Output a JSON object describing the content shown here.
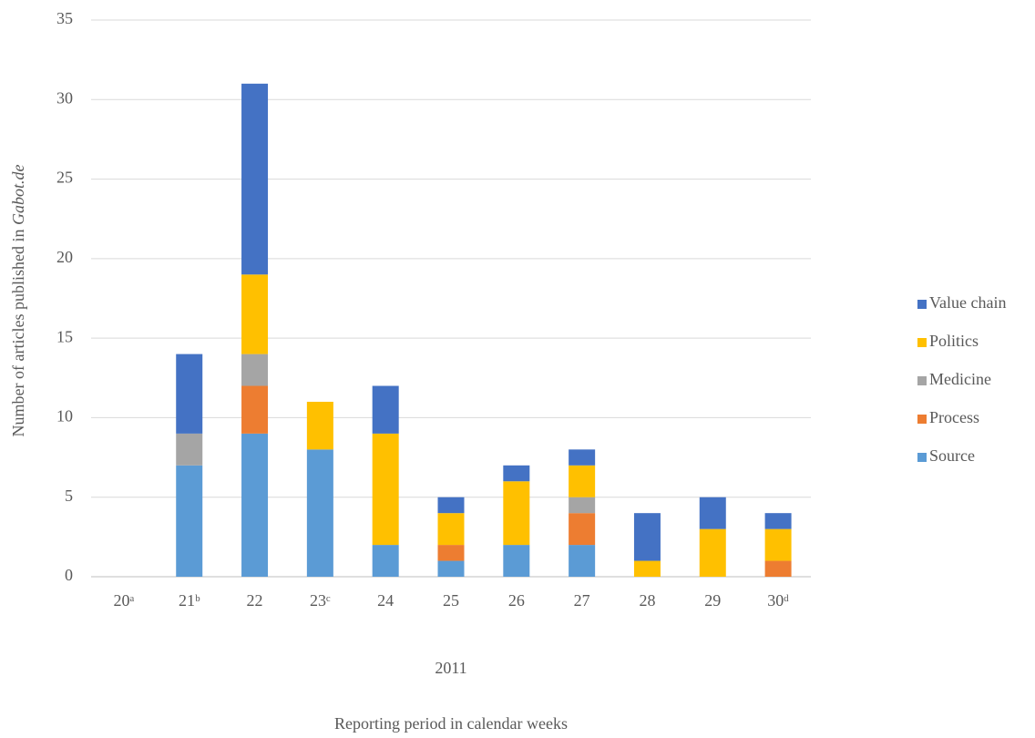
{
  "chart_data": {
    "type": "stacked_bar",
    "ylabel_parts": [
      "Number of articles published in ",
      "Gabot.de"
    ],
    "xlabel_parts": [
      "2011",
      "Reporting period in calendar weeks"
    ],
    "categories": [
      "20ᵃ",
      "21ᵇ",
      "22",
      "23ᶜ",
      "24",
      "25",
      "26",
      "27",
      "28",
      "29",
      "30ᵈ"
    ],
    "series": [
      {
        "name": "Source",
        "color": "#5b9bd5",
        "values": [
          0,
          7,
          9,
          8,
          2,
          1,
          2,
          2,
          0,
          0,
          0
        ]
      },
      {
        "name": "Process",
        "color": "#ed7d31",
        "values": [
          0,
          0,
          3,
          0,
          0,
          1,
          0,
          2,
          0,
          0,
          1
        ]
      },
      {
        "name": "Medicine",
        "color": "#a5a5a5",
        "values": [
          0,
          2,
          2,
          0,
          0,
          0,
          0,
          1,
          0,
          0,
          0
        ]
      },
      {
        "name": "Politics",
        "color": "#ffc000",
        "values": [
          0,
          0,
          5,
          3,
          7,
          2,
          4,
          2,
          1,
          3,
          2
        ]
      },
      {
        "name": "Value chain",
        "color": "#4472c4",
        "values": [
          0,
          5,
          12,
          0,
          3,
          1,
          1,
          1,
          3,
          2,
          1
        ]
      }
    ],
    "ylim": [
      0,
      35
    ],
    "yticks": [
      0,
      5,
      10,
      15,
      20,
      25,
      30,
      35
    ],
    "grid": true,
    "legend": "right"
  }
}
